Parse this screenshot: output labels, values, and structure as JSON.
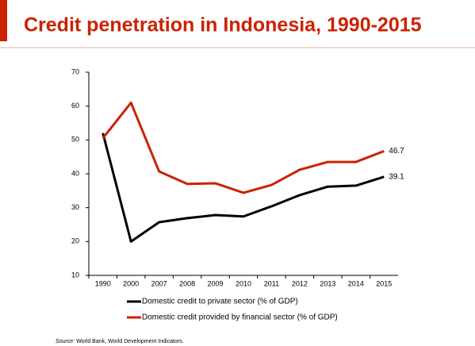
{
  "chart_data": {
    "type": "line",
    "title": "Credit penetration in Indonesia, 1990-2015",
    "categories": [
      "1990",
      "2000",
      "2007",
      "2008",
      "2009",
      "2010",
      "2011",
      "2012",
      "2013",
      "2014",
      "2015"
    ],
    "series": [
      {
        "name": "Domestic credit to private sector (% of GDP)",
        "color": "#000000",
        "values": [
          52,
          20,
          25.7,
          26.9,
          27.8,
          27.4,
          30.4,
          33.7,
          36.2,
          36.5,
          39.1
        ]
      },
      {
        "name": "Domestic credit provided by financial sector (% of GDP)",
        "color": "#cc2200",
        "values": [
          50.5,
          61,
          40.7,
          37,
          37.2,
          34.4,
          36.7,
          41.2,
          43.5,
          43.5,
          46.7
        ]
      }
    ],
    "ylim": [
      10,
      70
    ],
    "yticks": [
      10,
      20,
      30,
      40,
      50,
      60,
      70
    ],
    "grid": false,
    "source_label": "Source:",
    "source_text": "World Bank, World Development Indicators."
  }
}
